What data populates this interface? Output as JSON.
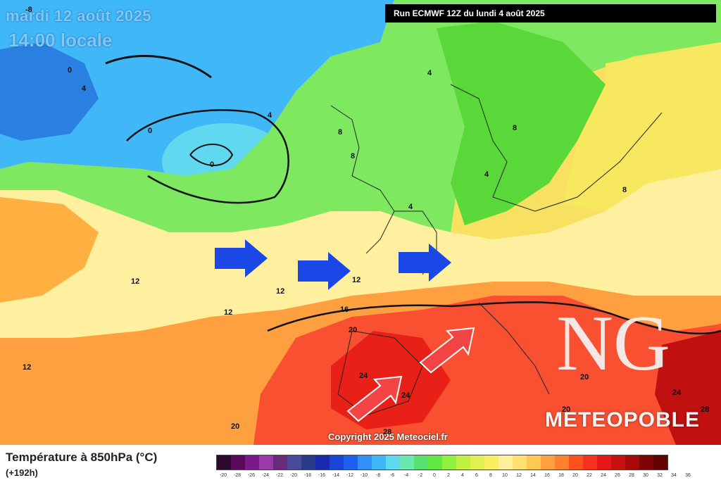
{
  "map": {
    "date": "mardi 12 août 2025",
    "time": "14:00 locale",
    "run": "Run ECMWF 12Z du lundi 4 août 2025",
    "copyright": "Copyright 2025 Meteociel.fr",
    "brand": "METEOPOBLE",
    "logo_text": "NG",
    "arrow_blue_color": "#1a47e6",
    "arrow_red_color": "#f24444"
  },
  "contour_labels": [
    "-8",
    "0",
    "4",
    "0",
    "0",
    "4",
    "4",
    "8",
    "8",
    "8",
    "4",
    "8",
    "4",
    "12",
    "12",
    "12",
    "12",
    "16",
    "20",
    "24",
    "24",
    "20",
    "20",
    "28",
    "20",
    "24",
    "28",
    "12"
  ],
  "legend": {
    "title": "Température à 850hPa (°C)",
    "subtitle": "(+192h)",
    "colors": [
      "#2c0a2c",
      "#5a0a5a",
      "#7a1a8a",
      "#9a3aa8",
      "#6a2a7a",
      "#4a4a9a",
      "#2a3a8a",
      "#1a2ab0",
      "#1a46d8",
      "#2060f0",
      "#3090f8",
      "#40b8f8",
      "#60d8f0",
      "#6ae8b0",
      "#5ae070",
      "#60e840",
      "#90f040",
      "#c0f040",
      "#e0f050",
      "#f8f060",
      "#fff0a0",
      "#ffe070",
      "#ffc850",
      "#ffa040",
      "#ff8030",
      "#ff5020",
      "#f83020",
      "#e81818",
      "#c81010",
      "#a80808",
      "#800404",
      "#600202"
    ],
    "ticks": [
      "-20",
      "-28",
      "-26",
      "-24",
      "-22",
      "-20",
      "-18",
      "-16",
      "-14",
      "-12",
      "-10",
      "-8",
      "-6",
      "-4",
      "-2",
      "0",
      "2",
      "4",
      "6",
      "8",
      "10",
      "12",
      "14",
      "16",
      "18",
      "20",
      "22",
      "24",
      "26",
      "28",
      "30",
      "32",
      "34",
      "36"
    ]
  }
}
